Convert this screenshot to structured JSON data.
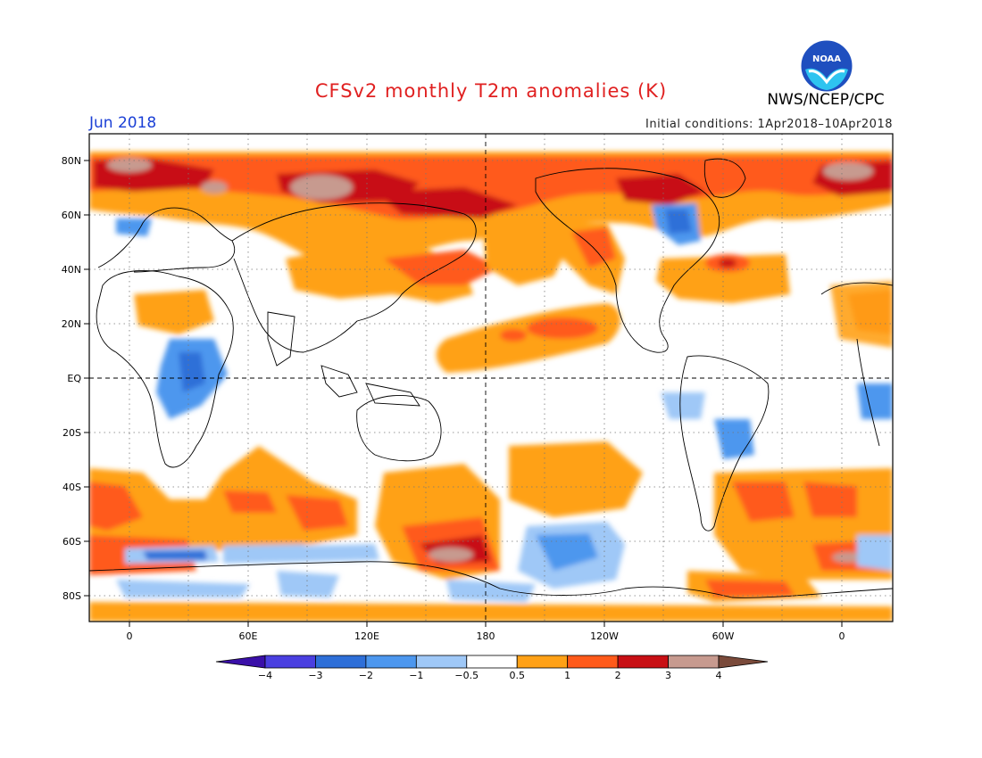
{
  "title": "CFSv2 monthly T2m anomalies (K)",
  "organization": "NWS/NCEP/CPC",
  "logo_text": "NOAA",
  "valid_month": "Jun 2018",
  "initial_conditions": "Initial conditions: 1Apr2018–10Apr2018",
  "map": {
    "lat_labels": [
      "80N",
      "60N",
      "40N",
      "20N",
      "EQ",
      "20S",
      "40S",
      "60S",
      "80S"
    ],
    "lon_labels": [
      "0",
      "60E",
      "120E",
      "180",
      "120W",
      "60W",
      "0"
    ]
  },
  "legend": {
    "tick_labels": [
      "−4",
      "−3",
      "−2",
      "−1",
      "−0.5",
      "0.5",
      "1",
      "2",
      "3",
      "4"
    ],
    "colors": [
      "#3a0fa8",
      "#4a3fe0",
      "#2e6fd8",
      "#4d97ee",
      "#9fc8f7",
      "#ffffff",
      "#ffa117",
      "#ff5a1a",
      "#c80f14",
      "#c79a8f",
      "#7a4a3a"
    ]
  }
}
